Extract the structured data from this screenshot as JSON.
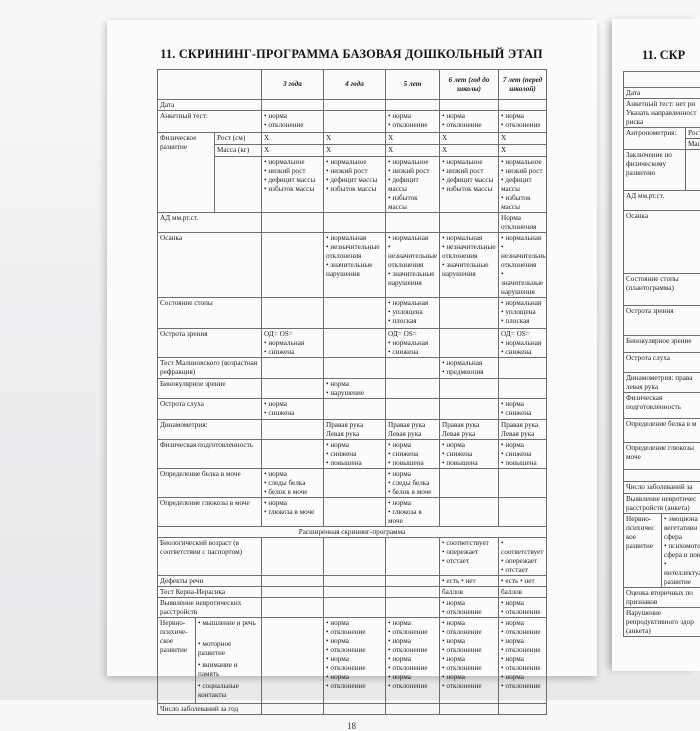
{
  "left_page": {
    "title": "11. СКРИНИНГ-ПРОГРАММА БАЗОВАЯ ДОШКОЛЬНЫЙ ЭТАП",
    "page_number": "18",
    "table": {
      "age_columns": [
        "3 года",
        "4 года",
        "5 лет",
        "6 лет (год до школы)",
        "7 лет (перед школой)"
      ],
      "rows": [
        {
          "label": "Дата",
          "cells": [
            "",
            "",
            "",
            "",
            ""
          ]
        },
        {
          "label": "Анкетный тест:",
          "cells": [
            [
              "• норма",
              "• отклонение"
            ],
            "",
            [
              "• норма",
              "• отклонение"
            ],
            [
              "• норма",
              "• отклонение"
            ],
            [
              "• норма",
              "• отклонение"
            ]
          ]
        },
        {
          "kind": "physical",
          "label": "Физическое развитие",
          "subrows": [
            {
              "sublabel": "Рост (см)",
              "cells": [
                "X",
                "X",
                "X",
                "X",
                "X"
              ]
            },
            {
              "sublabel": "Масса (кг)",
              "cells": [
                "X",
                "X",
                "X",
                "X",
                "X"
              ]
            },
            {
              "sublabel": "",
              "cells": [
                [
                  "• нормальное",
                  "• низкий рост",
                  "• дефицит массы",
                  "• избыток массы"
                ],
                [
                  "• нормальное",
                  "• низкий рост",
                  "• дефицит массы",
                  "• избыток массы"
                ],
                [
                  "• нормальное",
                  "• низкий рост",
                  "• дефицит массы",
                  "• избыток массы"
                ],
                [
                  "• нормальное",
                  "• низкий рост",
                  "• дефицит массы",
                  "• избыток массы"
                ],
                [
                  "• нормальное",
                  "• низкий рост",
                  "• дефицит массы",
                  "• избыток массы"
                ]
              ]
            }
          ]
        },
        {
          "label": "АД мм.рт.ст.",
          "cells": [
            "",
            "",
            "",
            "",
            [
              "Норма",
              "отклонения"
            ]
          ]
        },
        {
          "label": "Осанка",
          "cells": [
            "",
            [
              "• нормальная",
              "• незначительные отклонения",
              "• значительные нарушения"
            ],
            [
              "• нормальная",
              "• незначительные отклонения",
              "• значительные нарушения"
            ],
            [
              "• нормальная",
              "• незначительные отклонения",
              "• значительные нарушения"
            ],
            [
              "• нормальная",
              "• незначительные отклонения",
              "• значительные нарушения"
            ]
          ]
        },
        {
          "label": "Состояние стопы",
          "cells": [
            "",
            "",
            [
              "• нормальная",
              "• уплощена",
              "• плоская"
            ],
            "",
            [
              "• нормальная",
              "• уплощена",
              "• плоская"
            ]
          ]
        },
        {
          "label": "Острота зрения",
          "cells": [
            [
              "ОД= OS=",
              "• нормальная",
              "• снижена"
            ],
            "",
            [
              "ОД= OS=",
              "• нормальная",
              "• снижена"
            ],
            "",
            [
              "ОД= OS=",
              "• нормальная",
              "• снижена"
            ]
          ]
        },
        {
          "label": "Тест Малиновского (возрастная рефракция)",
          "cells": [
            "",
            "",
            "",
            [
              "• нормальная",
              "• предмиопия"
            ],
            ""
          ]
        },
        {
          "label": "Бинокулярное зрение",
          "cells": [
            "",
            [
              "• норма",
              "• нарушение"
            ],
            "",
            "",
            ""
          ]
        },
        {
          "label": "Острота слуха",
          "cells": [
            [
              "• норма",
              "• снижена"
            ],
            "",
            "",
            "",
            [
              "• норма",
              "• снижена"
            ]
          ]
        },
        {
          "label": "Динамометрия:",
          "cells": [
            "",
            [
              "Правая рука",
              "Левая рука"
            ],
            [
              "Правая рука",
              "Левая рука"
            ],
            [
              "Правая рука",
              "Левая рука"
            ],
            [
              "Правая рука",
              "Левая рука"
            ]
          ]
        },
        {
          "label": "Физическая подготовленность",
          "cells": [
            "",
            [
              "• норма",
              "• снижена",
              "• повышена"
            ],
            [
              "• норма",
              "• снижена",
              "• повышена"
            ],
            [
              "• норма",
              "• снижена",
              "• повышена"
            ],
            [
              "• норма",
              "• снижена",
              "• повышена"
            ]
          ]
        },
        {
          "label": "Определение белка в моче",
          "cells": [
            [
              "• норма",
              "• следы белка",
              "• белок в моче"
            ],
            "",
            [
              "• норма",
              "• следы белка",
              "• белок в моче"
            ],
            "",
            ""
          ]
        },
        {
          "label": "Определение глюкозы в моче",
          "cells": [
            [
              "• норма",
              "• глюкоза в моче"
            ],
            "",
            [
              "• норма",
              "• глюкоза в моче"
            ],
            "",
            ""
          ]
        },
        {
          "kind": "span",
          "text": "Расширенная скрининг-программа"
        },
        {
          "label": "Биологический возраст (в соответствии с паспортом)",
          "cells": [
            "",
            "",
            "",
            [
              "• соответствует",
              "• опережает",
              "• отстает"
            ],
            [
              "• соответствует",
              "• опережает",
              "• отстает"
            ]
          ]
        },
        {
          "label": "Дефекты речи",
          "cells": [
            "",
            "",
            "",
            "• есть • нет",
            "• есть • нет"
          ]
        },
        {
          "label": "Тест Керна-Иерасика",
          "cells": [
            "",
            "",
            "",
            "баллов",
            "баллов"
          ]
        },
        {
          "label": "Выявление невротических расстройств",
          "cells": [
            "",
            "",
            "",
            [
              "• норма",
              "• отклонение"
            ],
            [
              "• норма",
              "• отклонение"
            ]
          ]
        },
        {
          "kind": "nervous",
          "label": "Нервно-психиче-ское развитие",
          "sublabels": [
            "• мышление и речь",
            "• моторное развитие",
            "• внимание и память",
            "• социальные контакты"
          ],
          "cells": [
            "",
            [
              "• норма",
              "• отклонение",
              "• норма",
              "• отклонение",
              "• норма",
              "• отклонение",
              "• норма",
              "• отклонение"
            ],
            [
              "• норма",
              "• отклонение",
              "• норма",
              "• отклонение",
              "• норма",
              "• отклонение",
              "• норма",
              "• отклонение"
            ],
            [
              "• норма",
              "• отклонение",
              "• норма",
              "• отклонение",
              "• норма",
              "• отклонение",
              "• норма",
              "• отклонение"
            ],
            [
              "• норма",
              "• отклонение",
              "• норма",
              "• отклонение",
              "• норма",
              "• отклонение",
              "• норма",
              "• отклонение"
            ]
          ]
        },
        {
          "label": "Число заболеваний за год",
          "cells": [
            "",
            "",
            "",
            "",
            ""
          ]
        }
      ]
    }
  },
  "right_page": {
    "title_fragment": "11. СКР",
    "rows": [
      {
        "a": ""
      },
      {
        "a": "Дата"
      },
      {
        "a": [
          "Анкетный тест: нет ри",
          "Указать направленност",
          "риска"
        ]
      },
      {
        "kind": "anthro1",
        "a": "Антропометрия:",
        "b": "Рост (см)"
      },
      {
        "kind": "anthro2",
        "b": "Масса (кг)"
      },
      {
        "kind": "ab",
        "a": [
          "Заключение по",
          "физическому",
          "развитию"
        ],
        "b": ""
      },
      {
        "a": "АД мм.рт.ст."
      },
      {
        "a": "Осанка"
      },
      {
        "a": [
          "Состояние стопы",
          "(плантограмма)"
        ]
      },
      {
        "a": "Острота зрения"
      },
      {
        "a": "Бинокулярное зрение"
      },
      {
        "a": "Острота слуха"
      },
      {
        "a": [
          "Динамометрия: права",
          "левая рука"
        ]
      },
      {
        "a": [
          "Физическая",
          "подготовленность"
        ]
      },
      {
        "a": "Определение белка в м"
      },
      {
        "a": [
          "Определение глюкозы",
          "моче"
        ]
      },
      {
        "a": ""
      },
      {
        "a": "Число заболеваний за"
      },
      {
        "a": [
          "Выявление невротичес",
          "расстройств (анкета)"
        ]
      },
      {
        "kind": "nervous",
        "a": [
          "Нервно-",
          "психичес",
          "кое",
          "развитие"
        ],
        "b": [
          "• эмоциона",
          "вегетативн",
          "сфера",
          "• психомото",
          "сфера и пов",
          "•",
          "интеллектуа",
          "развитие"
        ]
      },
      {
        "a": [
          "Оценка вторичных по",
          "признаков"
        ]
      },
      {
        "a": [
          "Нарушение",
          "репродуктивного здор",
          "(анкета)"
        ]
      }
    ]
  }
}
